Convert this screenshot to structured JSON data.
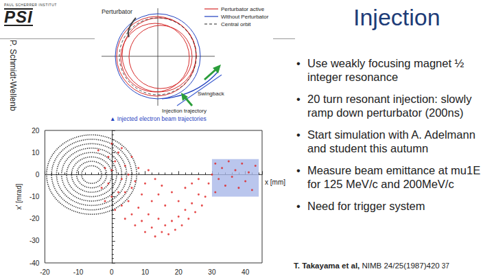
{
  "header": {
    "institute": "PAUL SCHERRER INSTITUT",
    "logo": "PSI",
    "title": "Injection",
    "author": "P. Schmidt-Wellenb"
  },
  "bullets": [
    "Use weakly focusing magnet ½ integer resonance",
    "20 turn resonant injection: slowly ramp down perturbator (200ns)",
    "Start simulation with A. Adelmann and student this autumn",
    "Measure beam emittance at mu1E for 125 MeV/c and 200MeV/c",
    "Need for trigger system"
  ],
  "citation": {
    "authors": "T. Takayama et al,",
    "reference": "NIMB 24/25(1987)420",
    "page": "37"
  },
  "inset": {
    "title": "Perturbator",
    "legend": [
      {
        "label": "Perturbator active",
        "color": "#d62828",
        "line_style": "solid"
      },
      {
        "label": "Without Perturbator",
        "color": "#1f3fbf",
        "line_style": "solid"
      },
      {
        "label": "Central orbit",
        "color": "#222222",
        "line_style": "dashed"
      }
    ],
    "labels": [
      "Swingback",
      "Injection trajectory"
    ],
    "caption": "▲ Injected electron beam trajectories"
  },
  "chart_data": {
    "type": "scatter",
    "x_label": "x [mm]",
    "y_label": "x' [mrad]",
    "xlim": [
      -20,
      45
    ],
    "xticks": [
      -20,
      -10,
      0,
      10,
      20,
      30,
      40
    ],
    "ylim": [
      -40,
      20
    ],
    "yticks": [
      -40,
      -30,
      -20,
      -10,
      0,
      10,
      20
    ],
    "grid": false,
    "injection_region": {
      "x": [
        30,
        44
      ],
      "y": [
        -10,
        7
      ],
      "color": "#a9b8e8"
    },
    "series": [
      {
        "type": "rings",
        "color": "#222222",
        "line_style": "dotted",
        "center": [
          -6,
          0
        ],
        "x_radii": [
          3,
          4.5,
          6,
          7.5,
          9,
          10.5,
          12,
          13.5
        ],
        "y_radii": [
          4,
          6,
          8,
          10,
          12,
          14,
          16,
          18
        ]
      },
      {
        "type": "scatter",
        "color": "#e02020",
        "marker": "circle",
        "points": [
          [
            31,
            5
          ],
          [
            33,
            3
          ],
          [
            35,
            6
          ],
          [
            37,
            2
          ],
          [
            39,
            5
          ],
          [
            41,
            1
          ],
          [
            43,
            4
          ],
          [
            32,
            -2
          ],
          [
            34,
            -5
          ],
          [
            36,
            -1
          ],
          [
            38,
            -6
          ],
          [
            40,
            -3
          ],
          [
            42,
            -7
          ],
          [
            31,
            -8
          ],
          [
            30,
            0
          ],
          [
            29,
            -4
          ],
          [
            28,
            -10
          ],
          [
            27,
            -14
          ],
          [
            26,
            -9
          ],
          [
            25,
            -17
          ],
          [
            24,
            -13
          ],
          [
            23,
            -20
          ],
          [
            22,
            -16
          ],
          [
            21,
            -23
          ],
          [
            20,
            -19
          ],
          [
            19,
            -25
          ],
          [
            18,
            -21
          ],
          [
            17,
            -27
          ],
          [
            16,
            -23
          ],
          [
            15,
            -26
          ],
          [
            14,
            -20
          ],
          [
            13,
            -28
          ],
          [
            12,
            -24
          ],
          [
            11,
            -18
          ],
          [
            10,
            -26
          ],
          [
            9,
            -21
          ],
          [
            8,
            -15
          ],
          [
            7,
            -23
          ],
          [
            6,
            -18
          ],
          [
            5,
            -12
          ],
          [
            4,
            -20
          ],
          [
            3,
            -14
          ],
          [
            2,
            -8
          ],
          [
            1,
            -16
          ],
          [
            0,
            -10
          ],
          [
            -1,
            -4
          ],
          [
            -2,
            -12
          ],
          [
            0,
            2
          ],
          [
            1,
            6
          ],
          [
            3,
            -2
          ],
          [
            4,
            4
          ],
          [
            2,
            10
          ],
          [
            -1,
            8
          ],
          [
            5,
            0
          ],
          [
            6,
            -6
          ],
          [
            -3,
            -6
          ],
          [
            -2,
            3
          ],
          [
            4,
            -8
          ],
          [
            7,
            -3
          ],
          [
            8,
            3
          ],
          [
            9,
            -9
          ],
          [
            10,
            -4
          ],
          [
            12,
            -12
          ],
          [
            14,
            -9
          ],
          [
            16,
            -14
          ],
          [
            18,
            -8
          ],
          [
            20,
            -12
          ],
          [
            22,
            -6
          ],
          [
            24,
            -4
          ],
          [
            26,
            -2
          ],
          [
            11,
            2
          ],
          [
            13,
            -2
          ],
          [
            15,
            -5
          ],
          [
            6,
            8
          ],
          [
            3,
            12
          ],
          [
            0,
            14
          ],
          [
            -4,
            11
          ]
        ]
      }
    ]
  }
}
